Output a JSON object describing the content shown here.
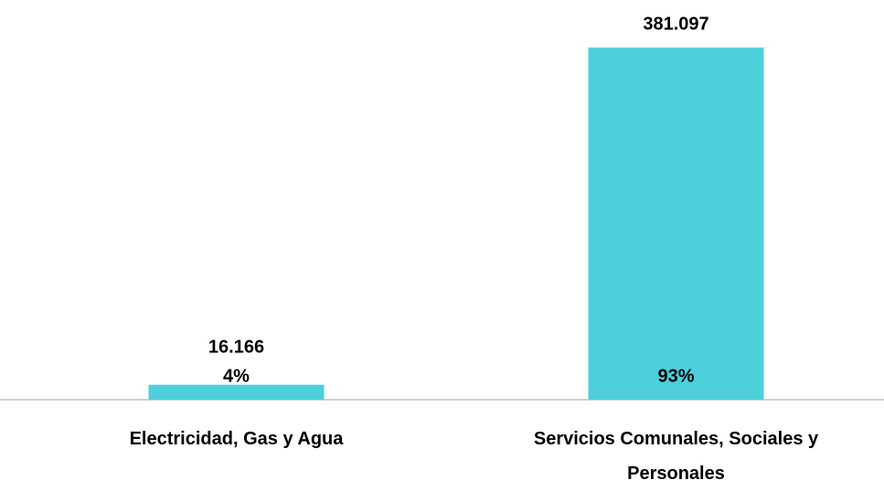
{
  "chart_data": {
    "type": "bar",
    "categories": [
      "Electricidad, Gas y Agua",
      "Servicios Comunales, Sociales y Personales"
    ],
    "values": [
      16166,
      381097
    ],
    "value_labels": [
      "16.166",
      "381.097"
    ],
    "percent_labels": [
      "4%",
      "93%"
    ],
    "color": "#4ecfdc",
    "ylim": [
      0,
      400000
    ]
  }
}
